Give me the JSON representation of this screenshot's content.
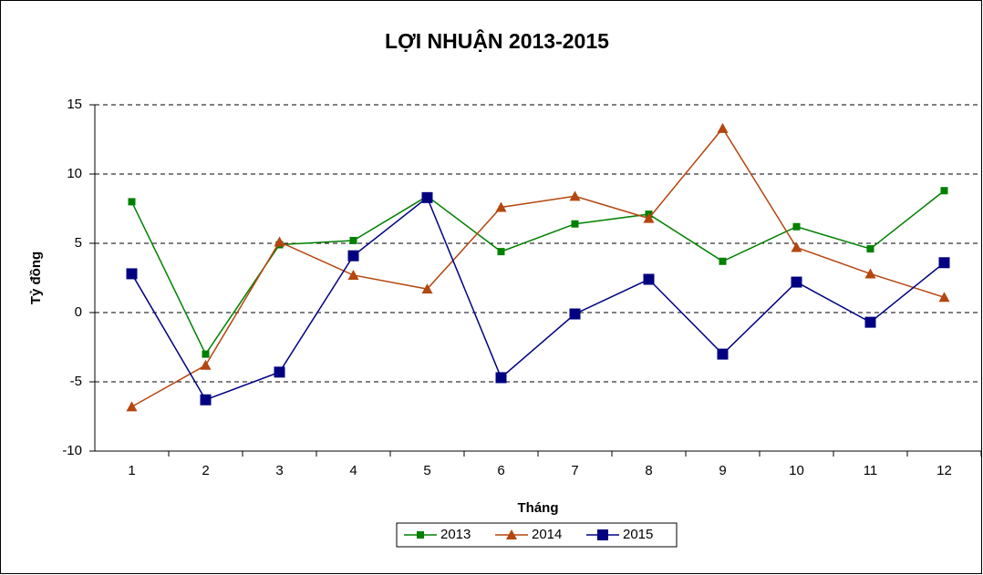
{
  "chart_data": {
    "type": "line",
    "title": "LỢI NHUẬN 2013-2015",
    "x_label": "Tháng",
    "y_label": "Tỷ đồng",
    "categories": [
      "1",
      "2",
      "3",
      "4",
      "5",
      "6",
      "7",
      "8",
      "9",
      "10",
      "11",
      "12"
    ],
    "series": [
      {
        "name": "2013",
        "color": "#008000",
        "marker": "square",
        "values": [
          8.0,
          -3.0,
          4.9,
          5.2,
          8.4,
          4.4,
          6.4,
          7.1,
          3.7,
          6.2,
          4.6,
          8.8
        ]
      },
      {
        "name": "2014",
        "color": "#b5460f",
        "marker": "triangle",
        "values": [
          -6.8,
          -3.8,
          5.1,
          2.7,
          1.7,
          7.6,
          8.4,
          6.8,
          13.3,
          4.7,
          2.8,
          1.1
        ]
      },
      {
        "name": "2015",
        "color": "#000080",
        "marker": "big-square",
        "values": [
          2.8,
          -6.3,
          -4.3,
          4.1,
          8.3,
          -4.7,
          -0.1,
          2.4,
          -3.0,
          2.2,
          -0.7,
          3.6
        ]
      }
    ],
    "ylim": [
      -10,
      15
    ],
    "yticks": [
      -10,
      -5,
      0,
      5,
      10,
      15
    ],
    "grid": true,
    "legend": "bottom"
  }
}
